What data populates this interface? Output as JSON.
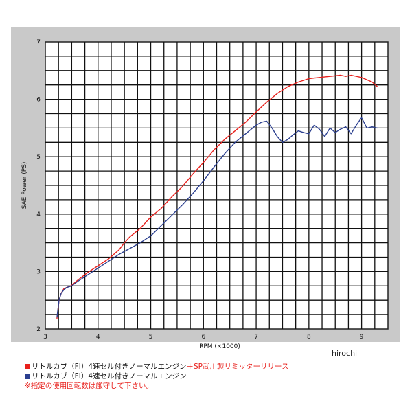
{
  "chart_data": {
    "type": "line",
    "xlabel": "RPM (×1000)",
    "ylabel": "SAE Power (PS)",
    "xlim": [
      3,
      9.5
    ],
    "ylim": [
      2,
      7
    ],
    "x_ticks": [
      "3",
      "4",
      "5",
      "6",
      "7",
      "8",
      "9"
    ],
    "y_ticks": [
      "2",
      "3",
      "4",
      "5",
      "6",
      "7"
    ],
    "grid": true,
    "series": [
      {
        "name": "リトルカブ（FI）4速セル付きノーマルエンジン＋SP武川製リミッターリリース",
        "color": "#e8201c",
        "x": [
          3.22,
          3.26,
          3.3,
          3.35,
          3.4,
          3.5,
          3.6,
          3.8,
          4.0,
          4.2,
          4.4,
          4.5,
          4.6,
          4.8,
          5.0,
          5.2,
          5.4,
          5.6,
          5.8,
          6.0,
          6.2,
          6.4,
          6.6,
          6.8,
          7.0,
          7.2,
          7.4,
          7.6,
          7.8,
          8.0,
          8.2,
          8.4,
          8.6,
          8.7,
          8.8,
          9.0,
          9.2,
          9.3
        ],
        "y": [
          2.18,
          2.5,
          2.62,
          2.7,
          2.72,
          2.76,
          2.84,
          2.98,
          3.1,
          3.22,
          3.38,
          3.5,
          3.6,
          3.75,
          3.95,
          4.1,
          4.3,
          4.48,
          4.7,
          4.9,
          5.12,
          5.3,
          5.45,
          5.6,
          5.78,
          5.95,
          6.1,
          6.22,
          6.3,
          6.36,
          6.38,
          6.4,
          6.42,
          6.4,
          6.42,
          6.38,
          6.3,
          6.22
        ]
      },
      {
        "name": "リトルカブ（FI）4速セル付きノーマルエンジン",
        "color": "#2b3f8f",
        "x": [
          3.22,
          3.26,
          3.3,
          3.35,
          3.4,
          3.5,
          3.6,
          3.8,
          4.0,
          4.2,
          4.4,
          4.6,
          4.8,
          5.0,
          5.2,
          5.4,
          5.6,
          5.8,
          6.0,
          6.2,
          6.4,
          6.6,
          6.8,
          7.0,
          7.1,
          7.2,
          7.3,
          7.4,
          7.5,
          7.6,
          7.7,
          7.8,
          7.9,
          8.0,
          8.1,
          8.2,
          8.3,
          8.4,
          8.5,
          8.6,
          8.7,
          8.8,
          8.9,
          9.0,
          9.1,
          9.2,
          9.3
        ],
        "y": [
          2.2,
          2.5,
          2.62,
          2.68,
          2.72,
          2.75,
          2.82,
          2.94,
          3.06,
          3.18,
          3.3,
          3.4,
          3.5,
          3.62,
          3.8,
          3.98,
          4.16,
          4.36,
          4.58,
          4.82,
          5.05,
          5.25,
          5.4,
          5.55,
          5.6,
          5.62,
          5.5,
          5.35,
          5.25,
          5.3,
          5.38,
          5.45,
          5.42,
          5.4,
          5.55,
          5.48,
          5.35,
          5.5,
          5.42,
          5.48,
          5.52,
          5.4,
          5.55,
          5.68,
          5.5,
          5.52,
          5.5
        ]
      }
    ]
  },
  "legend": {
    "row1_black": "リトルカブ（FI）4速セル付きノーマルエンジン",
    "row1_red": "＋SP武川製リミッターリリース",
    "row2": "リトルカブ（FI）4速セル付きノーマルエンジン",
    "note": "※指定の使用回転数は厳守して下さい。"
  },
  "watermark": "hirochi"
}
